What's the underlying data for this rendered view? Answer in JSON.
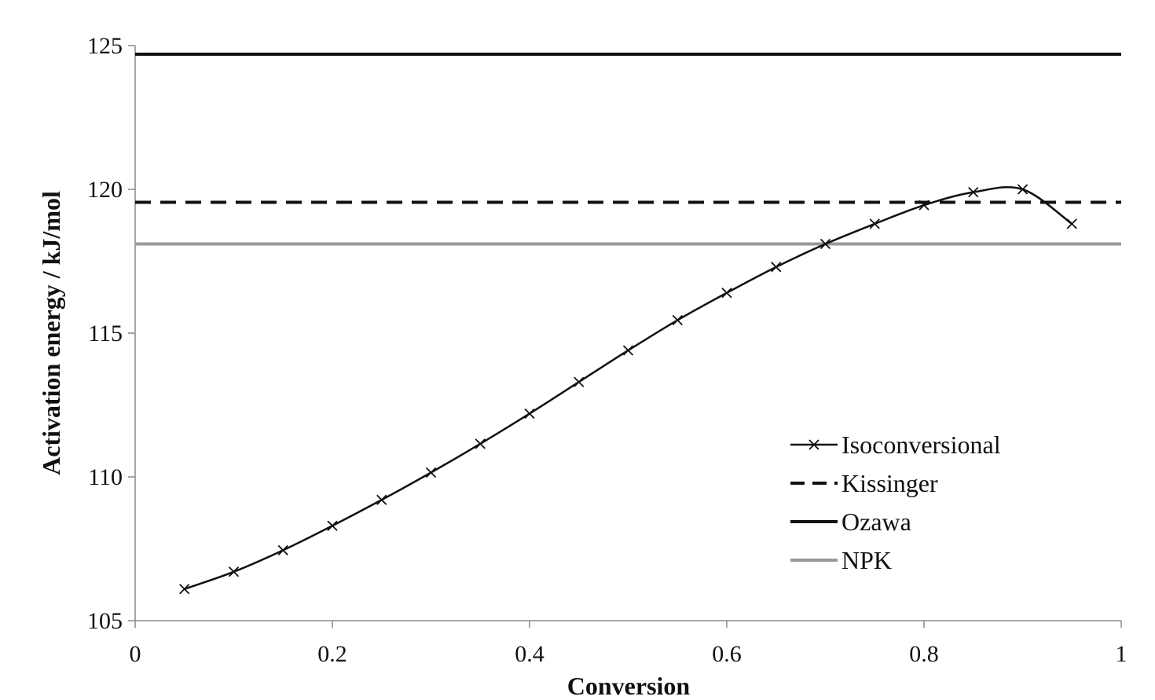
{
  "chart_data": {
    "type": "line",
    "xlabel": "Conversion",
    "ylabel": "Activation energy / kJ/mol",
    "xlim": [
      0,
      1
    ],
    "ylim": [
      105,
      125
    ],
    "xticks": [
      0,
      0.2,
      0.4,
      0.6,
      0.8,
      1
    ],
    "xtick_labels": [
      "0",
      "0.2",
      "0.4",
      "0.6",
      "0.8",
      "1"
    ],
    "yticks": [
      105,
      110,
      115,
      120,
      125
    ],
    "ytick_labels": [
      "105",
      "110",
      "115",
      "120",
      "125"
    ],
    "grid": false,
    "legend_position": "bottom-right",
    "series": [
      {
        "name": "Isoconversional",
        "style": "solid-with-x-markers",
        "color": "#111111",
        "x": [
          0.05,
          0.1,
          0.15,
          0.2,
          0.25,
          0.3,
          0.35,
          0.4,
          0.45,
          0.5,
          0.55,
          0.6,
          0.65,
          0.7,
          0.75,
          0.8,
          0.85,
          0.9,
          0.95
        ],
        "y": [
          106.1,
          106.7,
          107.45,
          108.3,
          109.2,
          110.15,
          111.15,
          112.2,
          113.3,
          114.4,
          115.45,
          116.4,
          117.3,
          118.1,
          118.8,
          119.45,
          119.9,
          120.0,
          118.8
        ]
      },
      {
        "name": "Kissinger",
        "style": "dashed",
        "color": "#111111",
        "value": 119.55
      },
      {
        "name": "Ozawa",
        "style": "solid",
        "color": "#111111",
        "value": 124.7
      },
      {
        "name": "NPK",
        "style": "solid",
        "color": "#999999",
        "value": 118.1
      }
    ]
  }
}
